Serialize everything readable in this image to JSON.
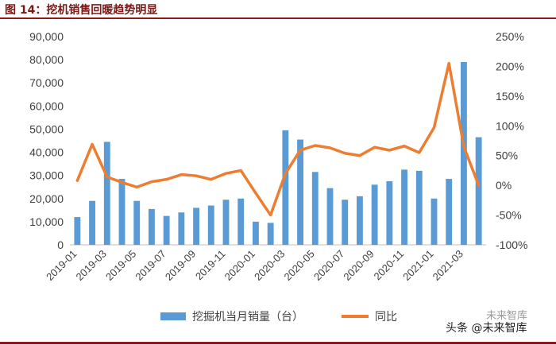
{
  "figure": {
    "title": "图 14：挖机销售回暖趋势明显"
  },
  "watermark": {
    "text": "头条 @未来智库",
    "logo_text": "未来智库"
  },
  "colors": {
    "bar": "#5b9bd5",
    "line": "#ed7d31",
    "axis": "#bfbfbf",
    "title": "#7a1717",
    "rule": "#8a1c1c"
  },
  "chart_data": {
    "type": "bar",
    "title": "",
    "x": [
      "2019-01",
      "2019-02",
      "2019-03",
      "2019-04",
      "2019-05",
      "2019-06",
      "2019-07",
      "2019-08",
      "2019-09",
      "2019-10",
      "2019-11",
      "2019-12",
      "2020-01",
      "2020-02",
      "2020-03",
      "2020-04",
      "2020-05",
      "2020-06",
      "2020-07",
      "2020-08",
      "2020-09",
      "2020-10",
      "2020-11",
      "2020-12",
      "2021-01",
      "2021-02",
      "2021-03",
      "2021-04"
    ],
    "x_tick_labels": [
      "2019-01",
      "2019-03",
      "2019-05",
      "2019-07",
      "2019-09",
      "2019-11",
      "2020-01",
      "2020-03",
      "2020-05",
      "2020-07",
      "2020-09",
      "2020-11",
      "2021-01",
      "2021-03"
    ],
    "series": [
      {
        "name": "挖掘机当月销量（台）",
        "type": "bar",
        "axis": "left",
        "values": [
          12000,
          19000,
          44500,
          28500,
          19000,
          15500,
          12500,
          14000,
          16000,
          17000,
          19500,
          20000,
          10000,
          9500,
          49500,
          45500,
          31500,
          24500,
          19500,
          21000,
          26000,
          27500,
          32500,
          32000,
          20000,
          28500,
          79000,
          46500
        ]
      },
      {
        "name": "同比",
        "type": "line",
        "axis": "right",
        "values": [
          8,
          69,
          14,
          5,
          -3,
          6,
          10,
          18,
          16,
          10,
          20,
          25,
          -13,
          -50,
          20,
          59,
          67,
          63,
          54,
          50,
          64,
          59,
          66,
          55,
          97,
          205,
          65,
          0
        ]
      }
    ],
    "y_left": {
      "min": 0,
      "max": 90000,
      "step": 10000,
      "tick_labels": [
        "0",
        "10,000",
        "20,000",
        "30,000",
        "40,000",
        "50,000",
        "60,000",
        "70,000",
        "80,000",
        "90,000"
      ]
    },
    "y_right": {
      "min": -100,
      "max": 250,
      "step": 50,
      "tick_labels": [
        "-100%",
        "-50%",
        "0%",
        "50%",
        "100%",
        "150%",
        "200%",
        "250%"
      ]
    },
    "grid": false,
    "legend_position": "bottom"
  }
}
